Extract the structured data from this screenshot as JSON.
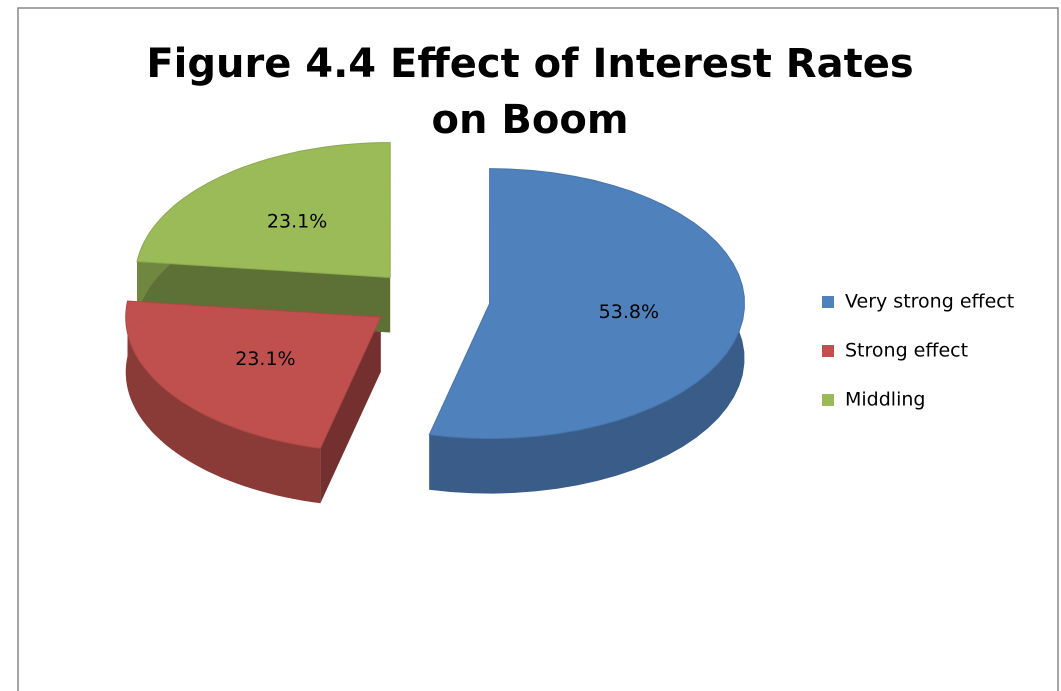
{
  "chart_data": {
    "type": "pie",
    "title": "Figure 4.4 Effect of Interest Rates on Boom",
    "categories": [
      "Very strong effect",
      "Strong effect",
      "Middling"
    ],
    "values": [
      53.8,
      23.1,
      23.1
    ],
    "value_labels": [
      "53.8%",
      "23.1%",
      "23.1%"
    ],
    "colors": [
      "#4f81bd",
      "#c0504d",
      "#9bbb59"
    ],
    "legend": "right"
  }
}
